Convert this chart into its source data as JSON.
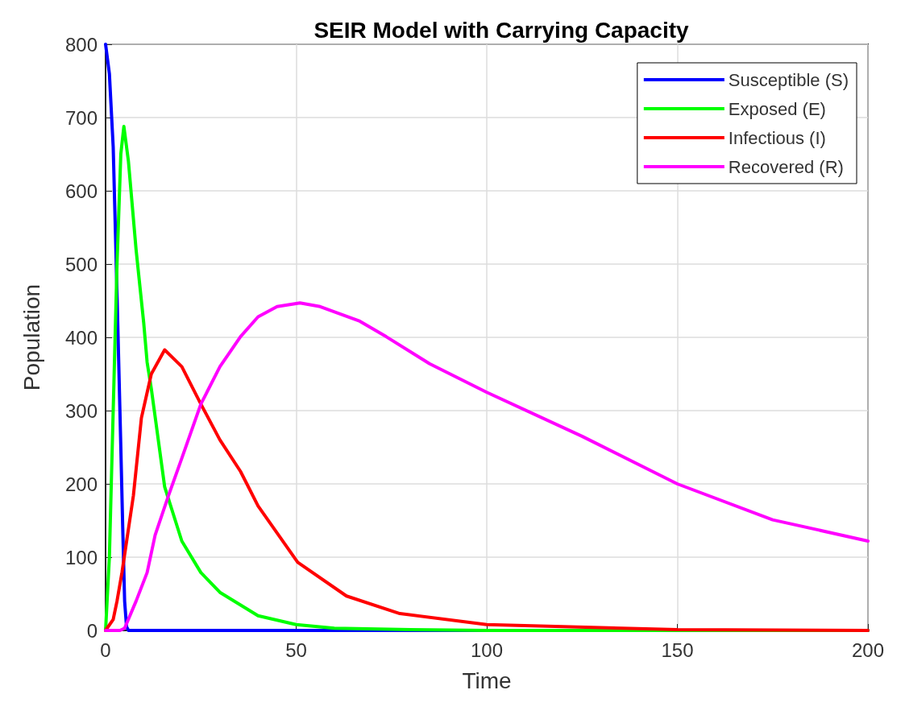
{
  "chart_data": {
    "type": "line",
    "title": "SEIR Model with Carrying Capacity",
    "xlabel": "Time",
    "ylabel": "Population",
    "xlim": [
      0,
      200
    ],
    "xticks": [
      0,
      50,
      100,
      150,
      200
    ],
    "ylim": [
      0,
      800
    ],
    "yticks": [
      0,
      100,
      200,
      300,
      400,
      500,
      600,
      700,
      800
    ],
    "grid": true,
    "legend": "top right",
    "marker": "none",
    "line_style": "solid",
    "series": [
      {
        "name": "Susceptible (S)",
        "color": "#0000ff",
        "x": [
          0,
          1,
          2,
          3,
          4,
          4.5,
          5,
          5.5,
          6,
          10,
          50,
          100,
          150,
          200
        ],
        "values": [
          800,
          760,
          660,
          460,
          250,
          140,
          40,
          5,
          0,
          0,
          0,
          0,
          0,
          0
        ]
      },
      {
        "name": "Exposed (E)",
        "color": "#00ff00",
        "x": [
          0,
          1,
          2,
          3,
          4,
          4.8,
          6,
          8,
          10,
          10.9,
          12,
          15.5,
          20,
          25,
          30,
          40,
          50,
          60,
          80,
          100,
          150,
          200
        ],
        "values": [
          0,
          100,
          300,
          500,
          650,
          688,
          640,
          520,
          420,
          366,
          330,
          196,
          122,
          79,
          52,
          20,
          8,
          3,
          1,
          0,
          0,
          0
        ]
      },
      {
        "name": "Infectious (I)",
        "color": "#ff0000",
        "x": [
          0,
          2,
          3,
          4.3,
          7.3,
          9.4,
          12,
          15.5,
          20,
          25,
          30,
          35.4,
          40,
          50.4,
          63.2,
          77.2,
          100,
          150,
          200
        ],
        "values": [
          0,
          15,
          40,
          79,
          184,
          290,
          350,
          383,
          360,
          309,
          260,
          217,
          170,
          93,
          47,
          23,
          8,
          1,
          0
        ]
      },
      {
        "name": "Recovered (R)",
        "color": "#ff00ff",
        "x": [
          0,
          3.8,
          5,
          8,
          10.9,
          13,
          16.5,
          20,
          25,
          30,
          35.4,
          40,
          45,
          51,
          56.3,
          66.7,
          73.6,
          85,
          100,
          125,
          150,
          175,
          200
        ],
        "values": [
          0,
          0,
          3,
          40,
          79,
          130,
          184,
          235,
          309,
          360,
          401,
          428,
          442,
          447,
          442,
          422,
          401,
          364,
          325,
          265,
          200,
          151,
          122
        ]
      }
    ]
  }
}
